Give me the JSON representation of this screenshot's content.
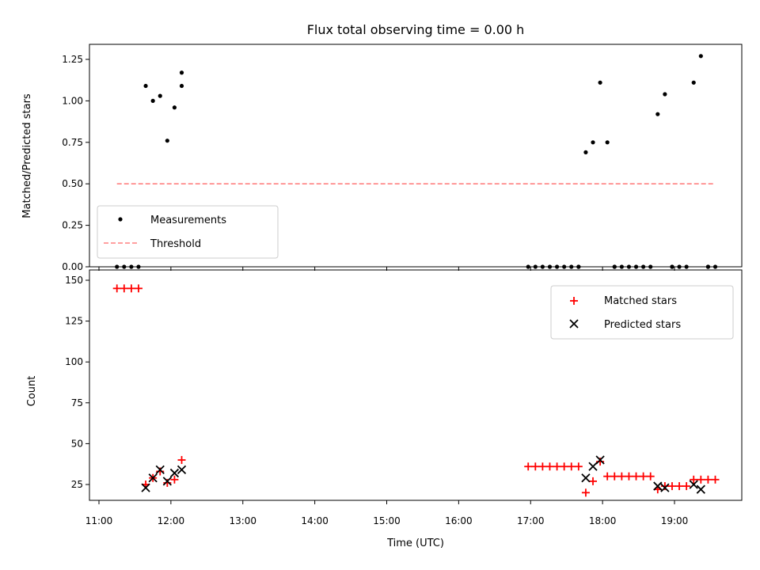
{
  "chart_data": [
    {
      "type": "scatter",
      "title": "Flux total observing time = 0.00 h",
      "xlabel": "",
      "ylabel": "Matched/Predicted stars",
      "xlim": [
        "11:00",
        "20:00"
      ],
      "ylim": [
        0,
        1.34
      ],
      "y_ticks": [
        "0.00",
        "0.25",
        "0.50",
        "0.75",
        "1.00",
        "1.25"
      ],
      "grid": false,
      "legend_position": "lower-left",
      "series": [
        {
          "name": "Measurements",
          "color": "#000000",
          "marker": "dot",
          "x": [
            "11:15",
            "11:21",
            "11:27",
            "11:33",
            "11:39",
            "11:45",
            "11:51",
            "11:57",
            "12:03",
            "12:09",
            "16:58",
            "17:04",
            "17:10",
            "17:16",
            "17:22",
            "17:28",
            "17:34",
            "17:40",
            "17:46",
            "17:52",
            "17:58",
            "18:04",
            "18:10",
            "18:16",
            "18:22",
            "18:28",
            "18:34",
            "18:40",
            "18:46",
            "18:52",
            "18:58",
            "19:04",
            "19:10",
            "19:16",
            "19:22",
            "19:28",
            "19:34"
          ],
          "y": [
            0.0,
            0.0,
            0.0,
            0.0,
            1.09,
            1.0,
            1.03,
            0.76,
            0.96,
            1.17,
            0.0,
            0.0,
            0.0,
            0.0,
            0.0,
            0.0,
            0.0,
            0.0,
            0.69,
            0.75,
            1.11,
            0.75,
            0.0,
            0.0,
            0.0,
            0.0,
            0.0,
            0.0,
            0.92,
            1.04,
            0.0,
            0.0,
            0.0,
            1.11,
            1.27,
            0.0,
            0.0
          ]
        },
        {
          "name": "Threshold",
          "color": "#ff8080",
          "style": "dashed",
          "x": [
            "11:15",
            "19:34"
          ],
          "y": [
            0.5,
            0.5
          ]
        }
      ],
      "extra_points": [
        {
          "x": "12:09",
          "y": 1.09
        },
        {
          "x": "17:40",
          "y": 0.0
        },
        {
          "x": "18:10",
          "y": 0.0
        },
        {
          "x": "18:58",
          "y": 0.0
        },
        {
          "x": "19:28",
          "y": 0.0
        }
      ]
    },
    {
      "type": "scatter",
      "title": "",
      "xlabel": "Time (UTC)",
      "ylabel": "Count",
      "xlim": [
        "11:00",
        "20:00"
      ],
      "ylim": [
        13,
        151
      ],
      "x_ticks": [
        "11:00",
        "12:00",
        "13:00",
        "14:00",
        "15:00",
        "16:00",
        "17:00",
        "18:00",
        "19:00"
      ],
      "y_ticks": [
        "25",
        "50",
        "75",
        "100",
        "125",
        "150"
      ],
      "grid": false,
      "legend_position": "top-right",
      "series": [
        {
          "name": "Matched stars",
          "color": "#ff0000",
          "marker": "plus",
          "x": [
            "11:15",
            "11:21",
            "11:27",
            "11:33",
            "11:39",
            "11:45",
            "11:51",
            "11:57",
            "12:03",
            "12:09",
            "16:58",
            "17:04",
            "17:10",
            "17:16",
            "17:22",
            "17:28",
            "17:34",
            "17:40",
            "17:46",
            "17:52",
            "17:58",
            "18:04",
            "18:10",
            "18:16",
            "18:22",
            "18:28",
            "18:34",
            "18:40",
            "18:46",
            "18:52",
            "18:58",
            "19:04",
            "19:10",
            "19:16",
            "19:22",
            "19:28",
            "19:34"
          ],
          "y": [
            145,
            145,
            145,
            145,
            25,
            29,
            33,
            26,
            28,
            40,
            36,
            36,
            36,
            36,
            36,
            36,
            36,
            36,
            20,
            27,
            39,
            30,
            30,
            30,
            30,
            30,
            30,
            30,
            22,
            24,
            24,
            24,
            24,
            28,
            28,
            28,
            28
          ]
        },
        {
          "name": "Predicted stars",
          "color": "#000000",
          "marker": "x",
          "x": [
            "11:39",
            "11:45",
            "11:51",
            "11:57",
            "12:03",
            "12:09",
            "17:46",
            "17:52",
            "17:58",
            "18:46",
            "18:52",
            "19:16",
            "19:22"
          ],
          "y": [
            23,
            29,
            34,
            27,
            32,
            34,
            29,
            36,
            40,
            24,
            23,
            25,
            22
          ]
        }
      ]
    }
  ]
}
